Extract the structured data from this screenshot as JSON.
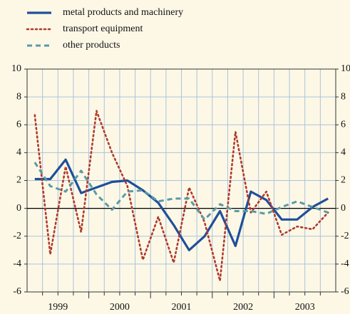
{
  "chart_data": {
    "type": "line",
    "categories": [
      null,
      "1999",
      null,
      null,
      null,
      "2000",
      null,
      null,
      null,
      "2001",
      null,
      null,
      null,
      "2002",
      null,
      null,
      null,
      "2003",
      null,
      null
    ],
    "series": [
      {
        "name": "metal products and machinery",
        "color": "#1f4f99",
        "style": "solid",
        "values": [
          2.1,
          2.1,
          3.5,
          1.1,
          1.5,
          1.9,
          2.0,
          1.3,
          0.4,
          -1.2,
          -3.0,
          -2.0,
          -0.2,
          -2.7,
          1.2,
          0.6,
          -0.8,
          -0.8,
          0.1,
          0.7
        ]
      },
      {
        "name": "transport equipment",
        "color": "#b0392e",
        "style": "dotted",
        "values": [
          6.7,
          -3.3,
          3.0,
          -1.7,
          7.0,
          4.0,
          1.6,
          -3.7,
          -0.6,
          -3.9,
          1.5,
          -1.0,
          -5.2,
          5.5,
          -0.3,
          1.2,
          -1.9,
          -1.3,
          -1.5,
          -0.3
        ]
      },
      {
        "name": "other products",
        "color": "#5a9aa8",
        "style": "dashed",
        "values": [
          3.3,
          1.6,
          1.2,
          2.7,
          1.0,
          -0.1,
          1.2,
          1.3,
          0.5,
          0.7,
          0.7,
          -0.8,
          0.3,
          -0.2,
          -0.2,
          -0.4,
          0.1,
          0.5,
          0.1,
          -0.3
        ]
      }
    ],
    "ylim": [
      -6,
      10
    ],
    "yticks": [
      -6,
      -4,
      -2,
      0,
      2,
      4,
      6,
      8,
      10
    ],
    "y2lim": [
      -6,
      10
    ],
    "y2ticks": [
      -6,
      -4,
      -2,
      0,
      2,
      4,
      6,
      8,
      10
    ],
    "grid": true,
    "legend": "top-left"
  }
}
